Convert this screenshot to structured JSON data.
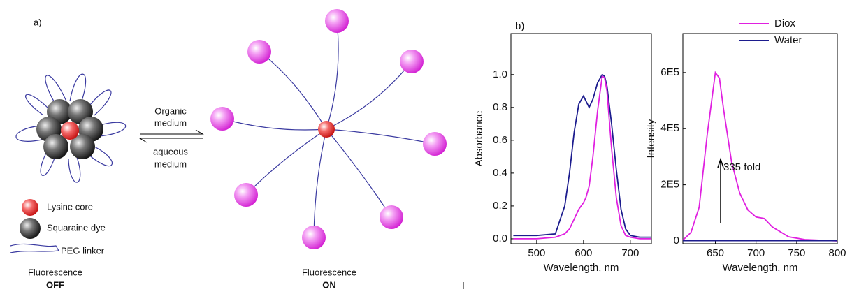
{
  "diagram": {
    "label": "a)",
    "organic": [
      "Organic",
      "medium"
    ],
    "aqueous": [
      "aqueous",
      "medium"
    ],
    "legend": [
      "Lysine core",
      "Squaraine dye",
      "PEG linker"
    ],
    "off": [
      "Fluorescence",
      "OFF"
    ],
    "on": [
      "Fluorescence",
      "ON"
    ]
  },
  "chart_data": [
    {
      "type": "line",
      "label": "b)",
      "xlabel": "Wavelength, nm",
      "ylabel": "Absorbance",
      "x": [
        450,
        500,
        540,
        560,
        570,
        580,
        590,
        600,
        605,
        612,
        620,
        630,
        640,
        645,
        650,
        660,
        670,
        680,
        690,
        700,
        720,
        745
      ],
      "series": [
        {
          "color": "#1c1c8e",
          "values": [
            0.02,
            0.02,
            0.03,
            0.2,
            0.4,
            0.65,
            0.82,
            0.87,
            0.84,
            0.8,
            0.85,
            0.95,
            1.0,
            0.99,
            0.93,
            0.7,
            0.42,
            0.18,
            0.06,
            0.02,
            0.01,
            0.01
          ]
        },
        {
          "color": "#e020e0",
          "values": [
            0,
            0,
            0.01,
            0.03,
            0.06,
            0.12,
            0.18,
            0.22,
            0.25,
            0.32,
            0.5,
            0.78,
            0.99,
            0.98,
            0.9,
            0.55,
            0.25,
            0.08,
            0.02,
            0.01,
            0,
            0
          ]
        }
      ],
      "xlim": [
        445,
        745
      ],
      "xticks": [
        500,
        600,
        700
      ],
      "ylim": [
        -0.03,
        1.25
      ],
      "yticks": [
        {
          "value": 0,
          "label": "0.0"
        },
        0.2,
        0.4,
        0.6,
        0.8,
        {
          "value": 1,
          "label": "1.0"
        }
      ]
    },
    {
      "type": "line",
      "xlabel": "Wavelength, nm",
      "ylabel": "Intensity",
      "annotation": "335 fold",
      "x": [
        610,
        620,
        630,
        640,
        650,
        655,
        660,
        670,
        680,
        690,
        700,
        710,
        720,
        740,
        760,
        800
      ],
      "series": [
        {
          "name": "Diox",
          "color": "#e020e0",
          "values": [
            3000,
            30000,
            120000,
            380000,
            600000,
            580000,
            470000,
            280000,
            170000,
            110000,
            85000,
            80000,
            50000,
            15000,
            5000,
            0
          ]
        },
        {
          "name": "Water",
          "color": "#1c1c8e",
          "values": [
            1000,
            1000,
            1000,
            1000,
            1000,
            1000,
            1000,
            1000,
            1000,
            1000,
            1000,
            1000,
            1000,
            1000,
            1000,
            1000
          ]
        }
      ],
      "xlim": [
        610,
        800
      ],
      "xticks": [
        650,
        700,
        750,
        800
      ],
      "ylim": [
        -10000,
        739000
      ],
      "yticks": [
        0,
        {
          "value": 200000,
          "label": "2E5"
        },
        {
          "value": 400000,
          "label": "4E5"
        },
        {
          "value": 600000,
          "label": "6E5"
        }
      ]
    }
  ]
}
